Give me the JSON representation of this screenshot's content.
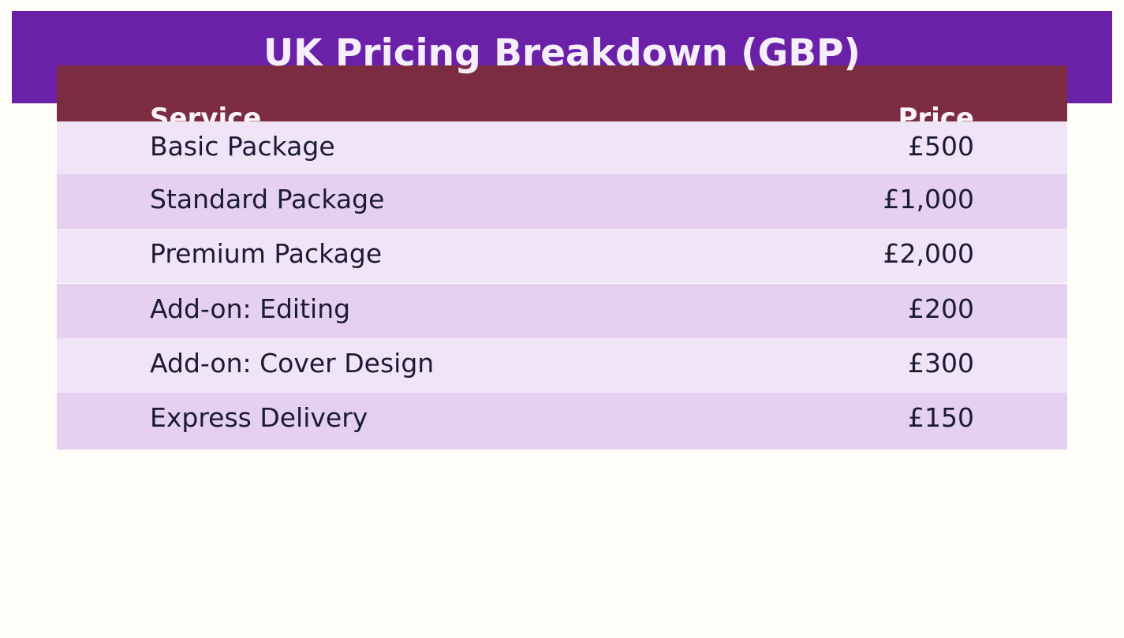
{
  "title": "UK Pricing Breakdown (GBP)",
  "table": {
    "headers": [
      "Service",
      "Price"
    ],
    "rows": [
      {
        "service": "Basic Package",
        "price": "£500"
      },
      {
        "service": "Standard Package",
        "price": "£1,000"
      },
      {
        "service": "Premium Package",
        "price": "£2,000"
      },
      {
        "service": "Add-on: Editing",
        "price": "£200"
      },
      {
        "service": "Add-on: Cover Design",
        "price": "£300"
      },
      {
        "service": "Express Delivery",
        "price": "£150"
      }
    ]
  },
  "colors": {
    "banner": "#6a21a8",
    "header": "#7b2c41",
    "row_light": "#f0e4f7",
    "row_dark": "#e5d0ef",
    "background": "#fffdf8"
  }
}
